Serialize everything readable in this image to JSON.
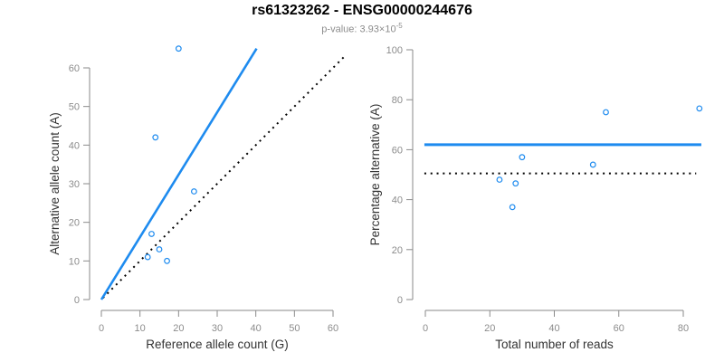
{
  "header": {
    "title": "rs61323262 - ENSG00000244676",
    "pvalue": {
      "label": "p-value:",
      "value": "3.93×10",
      "exponent": "-5"
    }
  },
  "colors": {
    "accent_blue": "#1e8bef",
    "dotted_black": "#000000",
    "axis_gray": "#8a8a8a",
    "tick_label_gray": "#8c8c8c",
    "axis_title_dark": "#333333",
    "background": "#ffffff"
  },
  "chart_data": [
    {
      "type": "scatter",
      "title": "",
      "xlabel": "Reference allele count (G)",
      "ylabel": "Alternative allele count (A)",
      "xlim": [
        0,
        63
      ],
      "ylim": [
        0,
        65
      ],
      "xticks": [
        0,
        10,
        20,
        30,
        40,
        50,
        60
      ],
      "yticks": [
        0,
        10,
        20,
        30,
        40,
        50,
        60
      ],
      "grid": false,
      "legend": null,
      "point_color": "accent_blue",
      "points": [
        [
          20,
          65
        ],
        [
          14,
          42
        ],
        [
          24,
          28
        ],
        [
          13,
          17
        ],
        [
          15,
          13
        ],
        [
          12,
          11
        ],
        [
          17,
          10
        ]
      ],
      "lines": [
        {
          "name": "identity-line",
          "x1": 0.4,
          "y1": 0.4,
          "x2": 63,
          "y2": 63,
          "style": "dotted",
          "width": 2,
          "color": "dotted_black"
        },
        {
          "name": "regression-line",
          "x1": 0,
          "y1": 0,
          "x2": 40.2,
          "y2": 65,
          "style": "solid",
          "width": 2.6,
          "color": "accent_blue"
        }
      ]
    },
    {
      "type": "scatter",
      "title": "",
      "xlabel": "Total number of reads",
      "ylabel": "Percentage alternative (A)",
      "xlim": [
        0,
        86
      ],
      "ylim": [
        0,
        100
      ],
      "xticks": [
        0,
        20,
        40,
        60,
        80
      ],
      "yticks": [
        0,
        20,
        40,
        60,
        80,
        100
      ],
      "grid": false,
      "legend": null,
      "point_color": "accent_blue",
      "points": [
        [
          23,
          48
        ],
        [
          27,
          37
        ],
        [
          28,
          46.5
        ],
        [
          30,
          57
        ],
        [
          52,
          54
        ],
        [
          56,
          75
        ],
        [
          85,
          76.5
        ]
      ],
      "lines": [
        {
          "name": "fifty-percent-line",
          "x1": -0.3,
          "y1": 50.5,
          "x2": 84,
          "y2": 50.5,
          "style": "dotted",
          "width": 2,
          "color": "dotted_black"
        },
        {
          "name": "mean-percentage-line",
          "x1": -0.3,
          "y1": 62,
          "x2": 85.6,
          "y2": 62,
          "style": "solid",
          "width": 3,
          "color": "accent_blue"
        }
      ]
    }
  ]
}
